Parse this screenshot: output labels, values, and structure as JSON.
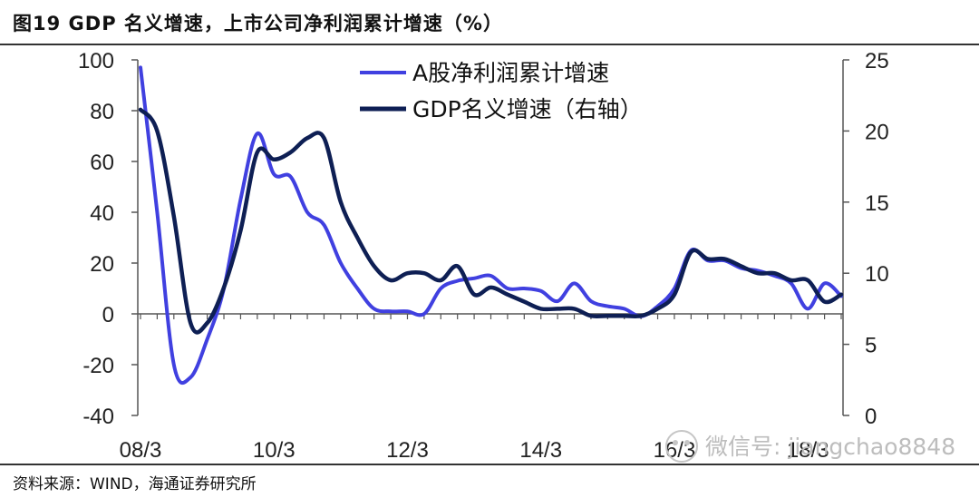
{
  "header": {
    "title": "图19 GDP 名义增速，上市公司净利润累计增速（%）"
  },
  "footer": {
    "source": "资料来源：WIND，海通证券研究所"
  },
  "watermark": {
    "text": "微信号: jiangchao8848"
  },
  "chart_data": {
    "type": "line",
    "x_ticks": [
      "08/3",
      "10/3",
      "12/3",
      "14/3",
      "16/3",
      "18/3"
    ],
    "x": [
      "08/3",
      "08/6",
      "08/9",
      "08/12",
      "09/3",
      "09/6",
      "09/9",
      "09/12",
      "10/3",
      "10/6",
      "10/9",
      "10/12",
      "11/3",
      "11/6",
      "11/9",
      "11/12",
      "12/3",
      "12/6",
      "12/9",
      "12/12",
      "13/3",
      "13/6",
      "13/9",
      "13/12",
      "14/3",
      "14/6",
      "14/9",
      "14/12",
      "15/3",
      "15/6",
      "15/9",
      "15/12",
      "16/3",
      "16/6",
      "16/9",
      "16/12",
      "17/3",
      "17/6",
      "17/9",
      "17/12",
      "18/3",
      "18/6",
      "18/9"
    ],
    "y_left": {
      "ticks": [
        100,
        80,
        60,
        40,
        20,
        0,
        -20,
        -40
      ],
      "lim": [
        -40,
        100
      ]
    },
    "y_right": {
      "ticks": [
        25,
        20,
        15,
        10,
        5,
        0
      ],
      "lim": [
        0,
        25
      ]
    },
    "legend": {
      "position": "top-center"
    },
    "grid": false,
    "series": [
      {
        "name": "A股净利润累计增速",
        "axis": "left",
        "color": "#4040e0",
        "values": [
          97,
          40,
          -20,
          -25,
          -10,
          10,
          45,
          71,
          55,
          54,
          40,
          35,
          20,
          10,
          2,
          1,
          1,
          0,
          10,
          13,
          14,
          15,
          10,
          10,
          9,
          5,
          12,
          5,
          3,
          2,
          -1,
          3,
          10,
          25,
          21,
          21,
          18,
          17,
          15,
          12,
          2,
          12,
          7
        ]
      },
      {
        "name": "GDP名义增速（右轴）",
        "axis": "right",
        "color": "#0e1f54",
        "values": [
          21.5,
          20,
          14,
          6.5,
          6.5,
          9,
          13,
          18.5,
          18,
          18.5,
          19.5,
          19.5,
          15,
          12.5,
          10.5,
          9.5,
          10,
          10,
          9.5,
          10.5,
          8.5,
          9,
          8.5,
          8,
          7.5,
          7.5,
          7.5,
          7,
          7,
          7,
          7,
          7.5,
          8.5,
          11.5,
          11,
          11,
          10.5,
          10,
          10,
          9.5,
          9.5,
          8,
          8.5
        ]
      }
    ]
  }
}
